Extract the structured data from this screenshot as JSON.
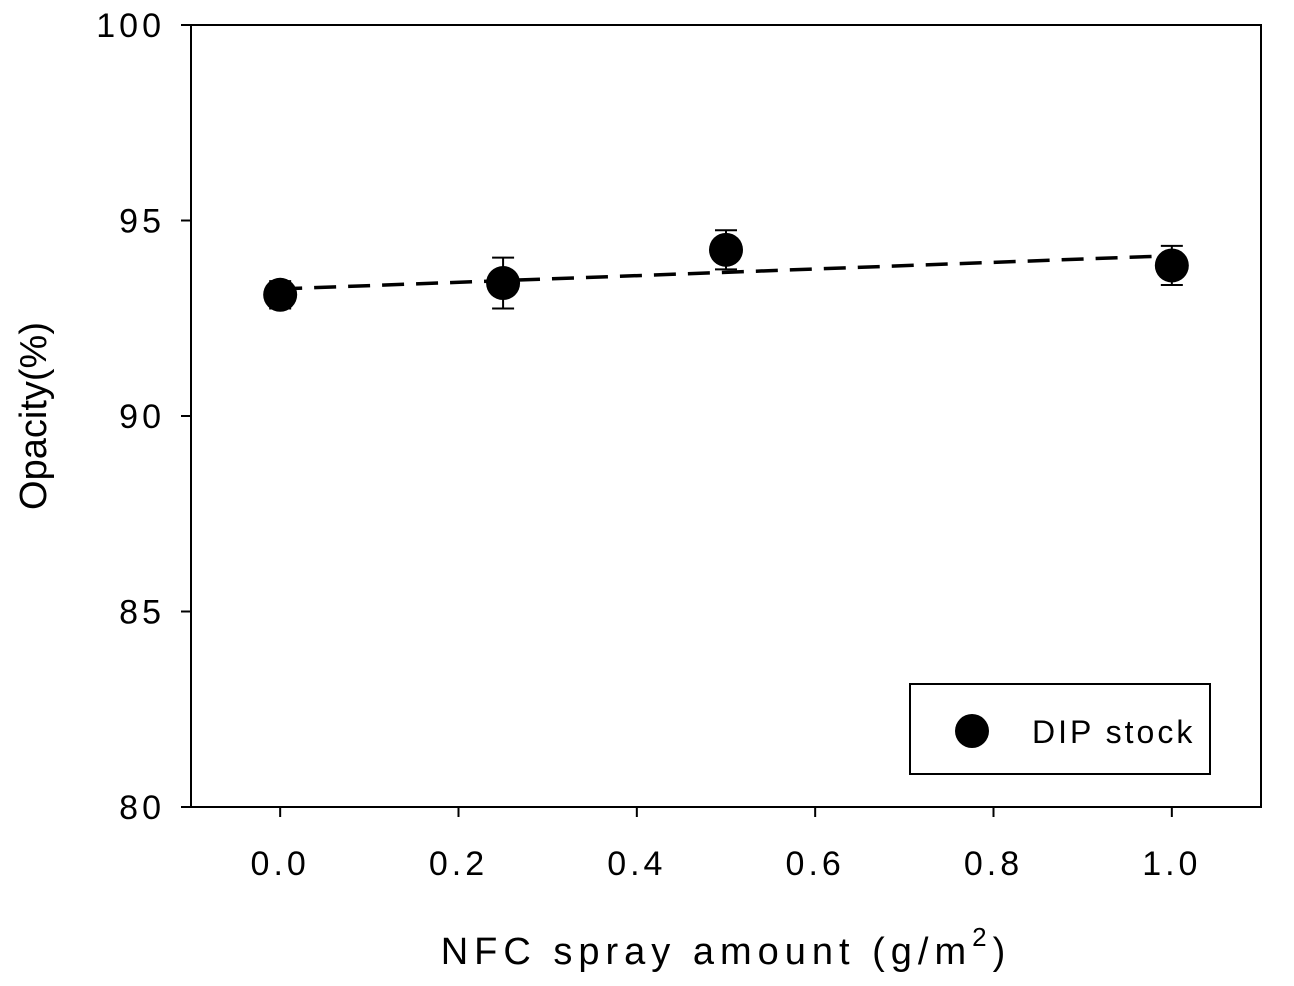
{
  "chart_data": {
    "type": "scatter",
    "xlabel": "NFC spray amount (g/m",
    "xlabel_superscript": "2",
    "xlabel_suffix": ")",
    "ylabel": "Opacity(%)",
    "xlim": [
      -0.1,
      1.1
    ],
    "ylim": [
      80,
      100
    ],
    "x_ticks": [
      "0.0",
      "0.2",
      "0.4",
      "0.6",
      "0.8",
      "1.0"
    ],
    "y_ticks": [
      "80",
      "85",
      "90",
      "95",
      "100"
    ],
    "grid": false,
    "legend_position": "bottom-right",
    "series": [
      {
        "name": "DIP stock",
        "marker": "filled-circle",
        "color": "#000000",
        "x": [
          0.0,
          0.25,
          0.5,
          1.0
        ],
        "y": [
          93.1,
          93.4,
          94.25,
          93.85
        ],
        "error": [
          0.35,
          0.65,
          0.5,
          0.5
        ]
      }
    ],
    "trendline": {
      "style": "dashed",
      "color": "#000000",
      "x": [
        0.0,
        1.0
      ],
      "y": [
        93.25,
        94.1
      ]
    }
  }
}
